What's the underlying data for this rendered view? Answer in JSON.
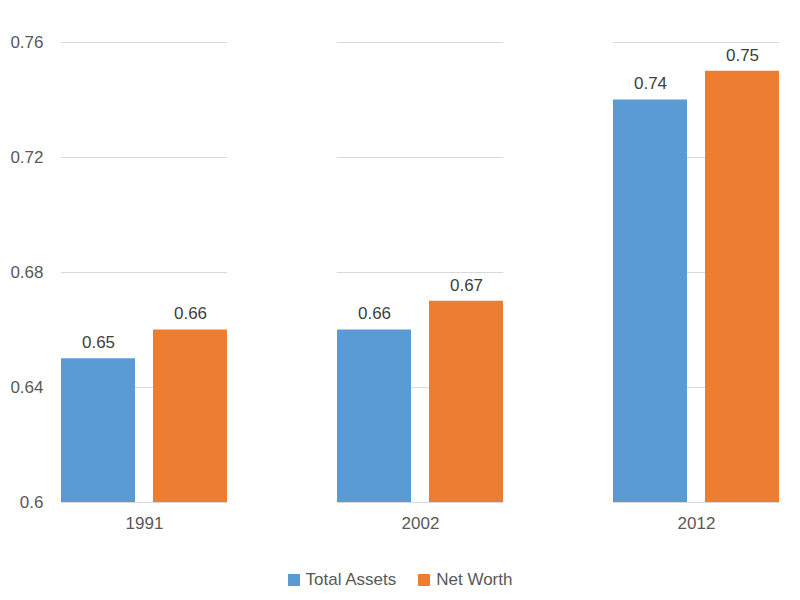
{
  "chart_data": {
    "type": "bar",
    "categories": [
      "1991",
      "2002",
      "2012"
    ],
    "series": [
      {
        "name": "Total Assets",
        "color": "#5b9bd5",
        "values": [
          0.65,
          0.66,
          0.74
        ]
      },
      {
        "name": "Net Worth",
        "color": "#ed7d31",
        "values": [
          0.66,
          0.67,
          0.75
        ]
      }
    ],
    "ylim": [
      0.6,
      0.76
    ],
    "yticks": [
      0.6,
      0.64,
      0.68,
      0.72,
      0.76
    ],
    "grid": true,
    "legend": "bottom",
    "data_labels": true
  }
}
